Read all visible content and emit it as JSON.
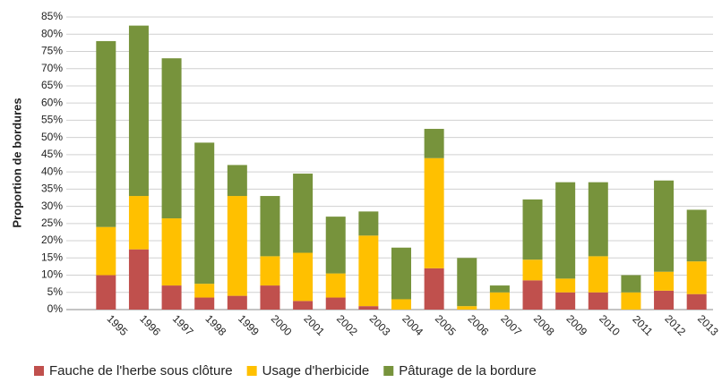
{
  "chart_data": {
    "type": "stacked_bar",
    "y_label": "Proportion de bordures",
    "categories": [
      "1995",
      "1996",
      "1997",
      "1998",
      "1999",
      "2000",
      "2001",
      "2002",
      "2003",
      "2004",
      "2005",
      "2006",
      "2007",
      "2008",
      "2009",
      "2010",
      "2011",
      "2012",
      "2013"
    ],
    "series": [
      {
        "name": "Fauche de l'herbe sous clôture",
        "color": "#c0504d",
        "values": [
          10,
          17.5,
          7,
          3.5,
          4,
          7,
          2.5,
          3.5,
          1,
          0,
          12,
          0,
          0,
          8.5,
          5,
          5,
          0,
          5.5,
          4.5
        ]
      },
      {
        "name": "Usage d'herbicide",
        "color": "#ffc000",
        "values": [
          14,
          15.5,
          19.5,
          4,
          29,
          8.5,
          14,
          7,
          20.5,
          3,
          32,
          1,
          5,
          6,
          4,
          10.5,
          5,
          5.5,
          9.5
        ]
      },
      {
        "name": "Pâturage de la bordure",
        "color": "#77933c",
        "values": [
          54,
          49.5,
          46.5,
          41,
          9,
          17.5,
          23,
          16.5,
          7,
          15,
          8.5,
          14,
          2,
          17.5,
          28,
          21.5,
          5,
          26.5,
          15
        ]
      }
    ],
    "ylim": [
      0,
      85
    ],
    "yticks": [
      {
        "value": 0,
        "label": "0%"
      },
      {
        "value": 5,
        "label": "5%"
      },
      {
        "value": 10,
        "label": "10%"
      },
      {
        "value": 15,
        "label": "15%"
      },
      {
        "value": 20,
        "label": "20%"
      },
      {
        "value": 25,
        "label": "25%"
      },
      {
        "value": 30,
        "label": "30%"
      },
      {
        "value": 35,
        "label": "35%"
      },
      {
        "value": 40,
        "label": "40%"
      },
      {
        "value": 45,
        "label": "45%"
      },
      {
        "value": 50,
        "label": "50%"
      },
      {
        "value": 55,
        "label": "55%"
      },
      {
        "value": 60,
        "label": "60%"
      },
      {
        "value": 65,
        "label": "65%"
      },
      {
        "value": 70,
        "label": "70%"
      },
      {
        "value": 75,
        "label": "75%"
      },
      {
        "value": 80,
        "label": "80%"
      },
      {
        "value": 85,
        "label": "85%"
      }
    ],
    "grid": true,
    "legend": "bottom"
  }
}
